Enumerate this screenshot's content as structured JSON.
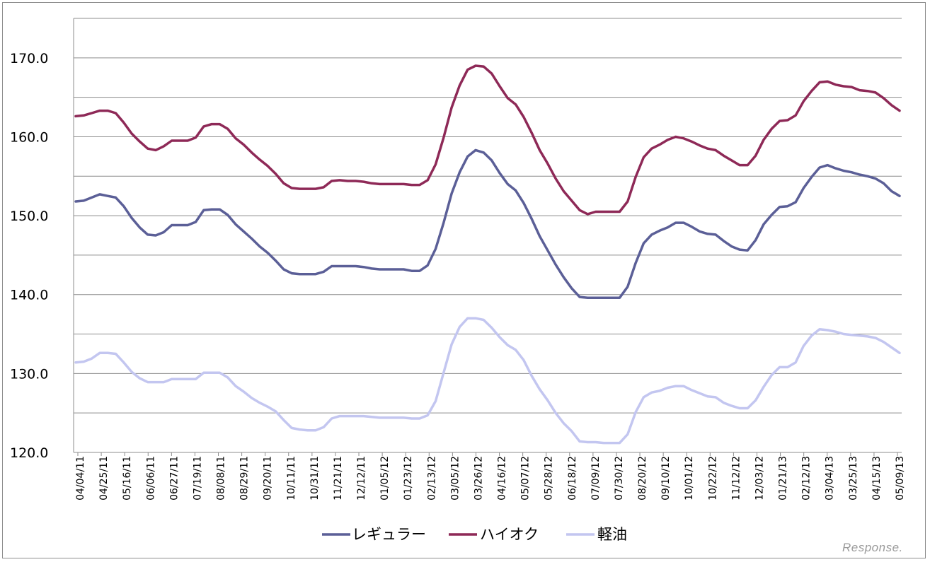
{
  "chart_data": {
    "type": "line",
    "title": "",
    "xlabel": "",
    "ylabel": "",
    "ylim": [
      120,
      175
    ],
    "y_ticks": [
      "120.0",
      "130.0",
      "140.0",
      "150.0",
      "160.0",
      "170.0"
    ],
    "gridlines": true,
    "legend_position": "bottom",
    "x_tick_labels": [
      "04/04/11",
      "04/25/11",
      "05/16/11",
      "06/06/11",
      "06/27/11",
      "07/19/11",
      "08/08/11",
      "08/29/11",
      "09/20/11",
      "10/11/11",
      "10/31/11",
      "11/21/11",
      "12/12/11",
      "01/05/12",
      "01/23/12",
      "02/13/12",
      "03/05/12",
      "03/26/12",
      "04/16/12",
      "05/07/12",
      "05/28/12",
      "06/18/12",
      "07/09/12",
      "07/30/12",
      "08/20/12",
      "09/10/12",
      "10/01/12",
      "10/22/12",
      "11/12/12",
      "12/03/12",
      "01/21/13",
      "02/12/13",
      "03/04/13",
      "03/25/13",
      "04/15/13",
      "05/09/13"
    ],
    "series": [
      {
        "name": "レギュラー",
        "color": "#5b5f97",
        "values": [
          151.8,
          151.9,
          152.3,
          152.7,
          152.5,
          152.3,
          151.2,
          149.7,
          148.5,
          147.6,
          147.5,
          147.9,
          148.8,
          148.8,
          148.8,
          149.2,
          150.7,
          150.8,
          150.8,
          150.1,
          148.9,
          148.0,
          147.1,
          146.1,
          145.3,
          144.3,
          143.2,
          142.7,
          142.6,
          142.6,
          142.6,
          142.9,
          143.6,
          143.6,
          143.6,
          143.6,
          143.5,
          143.3,
          143.2,
          143.2,
          143.2,
          143.2,
          143.0,
          143.0,
          143.7,
          145.8,
          149.1,
          152.8,
          155.5,
          157.5,
          158.3,
          158.0,
          157.0,
          155.4,
          154.0,
          153.2,
          151.6,
          149.6,
          147.4,
          145.6,
          143.8,
          142.2,
          140.8,
          139.7,
          139.6,
          139.6,
          139.6,
          139.6,
          139.6,
          141.0,
          144.0,
          146.5,
          147.6,
          148.1,
          148.5,
          149.1,
          149.1,
          148.6,
          148.0,
          147.7,
          147.6,
          146.8,
          146.1,
          145.7,
          145.6,
          146.9,
          148.9,
          150.1,
          151.1,
          151.2,
          151.7,
          153.5,
          154.9,
          156.1,
          156.4,
          156.0,
          155.7,
          155.5,
          155.2,
          155.0,
          154.7,
          154.1,
          153.1,
          152.5
        ]
      },
      {
        "name": "ハイオク",
        "color": "#8e2957",
        "values": [
          162.6,
          162.7,
          163.0,
          163.3,
          163.3,
          163.0,
          161.8,
          160.4,
          159.4,
          158.5,
          158.3,
          158.8,
          159.5,
          159.5,
          159.5,
          159.9,
          161.3,
          161.6,
          161.6,
          161.0,
          159.8,
          159.0,
          158.0,
          157.1,
          156.3,
          155.3,
          154.1,
          153.5,
          153.4,
          153.4,
          153.4,
          153.6,
          154.4,
          154.5,
          154.4,
          154.4,
          154.3,
          154.1,
          154.0,
          154.0,
          154.0,
          154.0,
          153.9,
          153.9,
          154.5,
          156.5,
          159.9,
          163.7,
          166.5,
          168.5,
          169.0,
          168.9,
          168.0,
          166.4,
          164.9,
          164.1,
          162.5,
          160.5,
          158.3,
          156.6,
          154.7,
          153.1,
          151.9,
          150.7,
          150.2,
          150.5,
          150.5,
          150.5,
          150.5,
          151.8,
          154.9,
          157.4,
          158.5,
          159.0,
          159.6,
          160.0,
          159.8,
          159.4,
          158.9,
          158.5,
          158.3,
          157.6,
          157.0,
          156.4,
          156.4,
          157.6,
          159.6,
          161.0,
          162.0,
          162.1,
          162.7,
          164.5,
          165.8,
          166.9,
          167.0,
          166.6,
          166.4,
          166.3,
          165.9,
          165.8,
          165.6,
          164.9,
          164.0,
          163.3
        ]
      },
      {
        "name": "軽油",
        "color": "#c3c6f0",
        "values": [
          131.4,
          131.5,
          131.9,
          132.6,
          132.6,
          132.5,
          131.4,
          130.2,
          129.4,
          128.9,
          128.9,
          128.9,
          129.3,
          129.3,
          129.3,
          129.3,
          130.1,
          130.1,
          130.1,
          129.5,
          128.4,
          127.7,
          126.9,
          126.3,
          125.8,
          125.2,
          124.1,
          123.1,
          122.9,
          122.8,
          122.8,
          123.2,
          124.3,
          124.6,
          124.6,
          124.6,
          124.6,
          124.5,
          124.4,
          124.4,
          124.4,
          124.4,
          124.3,
          124.3,
          124.7,
          126.5,
          130.1,
          133.7,
          135.9,
          137.0,
          137.0,
          136.8,
          135.8,
          134.6,
          133.6,
          133.0,
          131.7,
          129.7,
          128.0,
          126.6,
          125.0,
          123.7,
          122.7,
          121.4,
          121.3,
          121.3,
          121.2,
          121.2,
          121.2,
          122.3,
          125.1,
          127.0,
          127.6,
          127.8,
          128.2,
          128.4,
          128.4,
          127.9,
          127.5,
          127.1,
          127.0,
          126.3,
          125.9,
          125.6,
          125.6,
          126.6,
          128.3,
          129.8,
          130.8,
          130.8,
          131.4,
          133.5,
          134.8,
          135.6,
          135.5,
          135.3,
          135.0,
          134.9,
          134.8,
          134.7,
          134.5,
          134.0,
          133.3,
          132.6
        ]
      }
    ]
  },
  "watermark": "Response."
}
